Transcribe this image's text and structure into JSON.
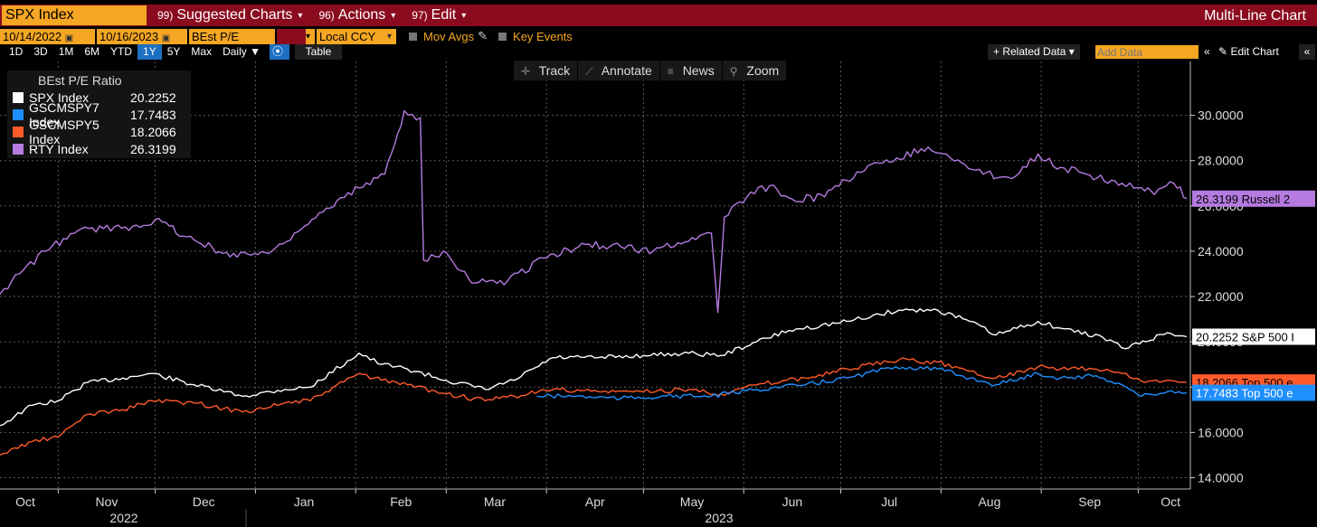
{
  "toolbar": {
    "ticker": "SPX Index",
    "menu": [
      {
        "num": "99)",
        "label": "Suggested Charts"
      },
      {
        "num": "96)",
        "label": "Actions"
      },
      {
        "num": "97)",
        "label": "Edit"
      }
    ],
    "chart_kind": "Multi-Line Chart"
  },
  "settings": {
    "start_date": "10/14/2022",
    "end_date": "10/16/2023",
    "field": "BEst P/E",
    "currency": "Local CCY",
    "mov_avgs": "Mov Avgs",
    "key_events": "Key Events"
  },
  "ranges": {
    "items": [
      "1D",
      "3D",
      "1M",
      "6M",
      "YTD",
      "1Y",
      "5Y",
      "Max"
    ],
    "active": "1Y",
    "frequency": "Daily",
    "table_label": "Table",
    "related_data": "+ Related Data",
    "add_data_placeholder": "Add Data",
    "edit_chart": "Edit Chart"
  },
  "tools": [
    {
      "icon": "crosshair-icon",
      "glyph": "✛",
      "label": "Track"
    },
    {
      "icon": "pen-icon",
      "glyph": "⟋",
      "label": "Annotate"
    },
    {
      "icon": "news-icon",
      "glyph": "≡",
      "label": "News"
    },
    {
      "icon": "zoom-icon",
      "glyph": "⚲",
      "label": "Zoom"
    }
  ],
  "colors": {
    "spx": "#ffffff",
    "gscmspy7": "#1f8fff",
    "gscmspy5": "#ff5a2a",
    "rty": "#b57be0",
    "orange": "#f5a623",
    "red": "#8a0b1e"
  },
  "chart_data": {
    "type": "line",
    "title": "BEst P/E Ratio",
    "x_months": [
      "Oct",
      "Nov",
      "Dec",
      "Jan",
      "Feb",
      "Mar",
      "Apr",
      "May",
      "Jun",
      "Jul",
      "Aug",
      "Sep",
      "Oct"
    ],
    "years": [
      "2022",
      "2023"
    ],
    "xrange": [
      "2022-10-14",
      "2023-10-16"
    ],
    "ylim": [
      13.5,
      31.5
    ],
    "yticks": [
      "14.0000",
      "16.0000",
      "18.0000",
      "20.0000",
      "22.0000",
      "24.0000",
      "26.0000",
      "28.0000",
      "30.0000"
    ],
    "grid": true,
    "legend_position": "top-left",
    "series": [
      {
        "key": "spx",
        "name": "SPX Index",
        "last": "20.2252",
        "tag": "20.2252 S&P 500 I",
        "points": [
          [
            "2022-10-14",
            16.3
          ],
          [
            "2022-10-24",
            17.2
          ],
          [
            "2022-11-01",
            17.4
          ],
          [
            "2022-11-10",
            18.2
          ],
          [
            "2022-11-21",
            18.4
          ],
          [
            "2022-11-30",
            18.6
          ],
          [
            "2022-12-13",
            18.1
          ],
          [
            "2022-12-28",
            17.6
          ],
          [
            "2023-01-10",
            17.9
          ],
          [
            "2023-01-18",
            18.0
          ],
          [
            "2023-02-02",
            19.5
          ],
          [
            "2023-02-09",
            19.0
          ],
          [
            "2023-02-17",
            18.8
          ],
          [
            "2023-03-01",
            18.3
          ],
          [
            "2023-03-13",
            17.9
          ],
          [
            "2023-03-22",
            18.3
          ],
          [
            "2023-04-03",
            19.3
          ],
          [
            "2023-04-17",
            19.3
          ],
          [
            "2023-05-01",
            19.4
          ],
          [
            "2023-05-15",
            19.5
          ],
          [
            "2023-05-25",
            19.4
          ],
          [
            "2023-06-05",
            20.0
          ],
          [
            "2023-06-15",
            20.5
          ],
          [
            "2023-07-03",
            20.9
          ],
          [
            "2023-07-19",
            21.4
          ],
          [
            "2023-07-31",
            21.4
          ],
          [
            "2023-08-10",
            20.9
          ],
          [
            "2023-08-18",
            20.3
          ],
          [
            "2023-08-31",
            20.9
          ],
          [
            "2023-09-07",
            20.6
          ],
          [
            "2023-09-20",
            20.2
          ],
          [
            "2023-09-27",
            19.7
          ],
          [
            "2023-10-10",
            20.4
          ],
          [
            "2023-10-16",
            20.2252
          ]
        ]
      },
      {
        "key": "gscmspy7",
        "name": "GSCMSPY7 Index",
        "last": "17.7483",
        "tag": "17.7483 Top 500 e",
        "points": [
          [
            "2023-03-29",
            17.6
          ],
          [
            "2023-04-10",
            17.6
          ],
          [
            "2023-04-24",
            17.5
          ],
          [
            "2023-05-08",
            17.6
          ],
          [
            "2023-05-22",
            17.6
          ],
          [
            "2023-06-05",
            17.9
          ],
          [
            "2023-06-20",
            18.1
          ],
          [
            "2023-07-03",
            18.4
          ],
          [
            "2023-07-18",
            18.9
          ],
          [
            "2023-07-31",
            18.8
          ],
          [
            "2023-08-10",
            18.4
          ],
          [
            "2023-08-18",
            18.1
          ],
          [
            "2023-08-31",
            18.6
          ],
          [
            "2023-09-07",
            18.4
          ],
          [
            "2023-09-18",
            18.5
          ],
          [
            "2023-09-26",
            18.1
          ],
          [
            "2023-10-02",
            17.6
          ],
          [
            "2023-10-10",
            17.8
          ],
          [
            "2023-10-16",
            17.7483
          ]
        ]
      },
      {
        "key": "gscmspy5",
        "name": "GSCMSPY5 Index",
        "last": "18.2066",
        "tag": "18.2066 Top 500 e",
        "points": [
          [
            "2022-10-14",
            15.0
          ],
          [
            "2022-10-24",
            15.6
          ],
          [
            "2022-11-01",
            15.8
          ],
          [
            "2022-11-10",
            16.8
          ],
          [
            "2022-11-21",
            17.0
          ],
          [
            "2022-11-30",
            17.4
          ],
          [
            "2022-12-13",
            17.3
          ],
          [
            "2022-12-28",
            16.9
          ],
          [
            "2023-01-10",
            17.3
          ],
          [
            "2023-01-18",
            17.4
          ],
          [
            "2023-02-02",
            18.6
          ],
          [
            "2023-02-09",
            18.3
          ],
          [
            "2023-02-17",
            18.1
          ],
          [
            "2023-03-01",
            17.7
          ],
          [
            "2023-03-13",
            17.4
          ],
          [
            "2023-03-22",
            17.6
          ],
          [
            "2023-04-03",
            17.9
          ],
          [
            "2023-04-17",
            17.8
          ],
          [
            "2023-05-01",
            17.8
          ],
          [
            "2023-05-15",
            17.9
          ],
          [
            "2023-05-25",
            17.7
          ],
          [
            "2023-06-05",
            18.1
          ],
          [
            "2023-06-20",
            18.4
          ],
          [
            "2023-07-03",
            18.8
          ],
          [
            "2023-07-19",
            19.2
          ],
          [
            "2023-07-31",
            19.1
          ],
          [
            "2023-08-10",
            18.7
          ],
          [
            "2023-08-18",
            18.4
          ],
          [
            "2023-08-31",
            18.9
          ],
          [
            "2023-09-07",
            18.8
          ],
          [
            "2023-09-18",
            18.8
          ],
          [
            "2023-09-26",
            18.6
          ],
          [
            "2023-10-03",
            18.2
          ],
          [
            "2023-10-10",
            18.3
          ],
          [
            "2023-10-16",
            18.2066
          ]
        ]
      },
      {
        "key": "rty",
        "name": "RTY Index",
        "last": "26.3199",
        "tag": "26.3199 Russell 2",
        "points": [
          [
            "2022-10-14",
            22.1
          ],
          [
            "2022-10-20",
            23.0
          ],
          [
            "2022-10-28",
            24.0
          ],
          [
            "2022-11-07",
            24.9
          ],
          [
            "2022-11-15",
            25.0
          ],
          [
            "2022-11-24",
            25.1
          ],
          [
            "2022-12-01",
            25.4
          ],
          [
            "2022-12-13",
            24.5
          ],
          [
            "2022-12-22",
            23.9
          ],
          [
            "2023-01-05",
            23.9
          ],
          [
            "2023-01-13",
            24.8
          ],
          [
            "2023-01-24",
            25.9
          ],
          [
            "2023-02-02",
            26.8
          ],
          [
            "2023-02-10",
            27.4
          ],
          [
            "2023-02-14",
            29.2
          ],
          [
            "2023-02-16",
            30.2
          ],
          [
            "2023-02-21",
            29.9
          ],
          [
            "2023-02-22",
            23.6
          ],
          [
            "2023-02-28",
            24.0
          ],
          [
            "2023-03-10",
            22.6
          ],
          [
            "2023-03-20",
            22.7
          ],
          [
            "2023-03-31",
            23.7
          ],
          [
            "2023-04-13",
            24.3
          ],
          [
            "2023-04-24",
            24.2
          ],
          [
            "2023-05-04",
            24.0
          ],
          [
            "2023-05-16",
            24.6
          ],
          [
            "2023-05-22",
            24.8
          ],
          [
            "2023-05-24",
            21.3
          ],
          [
            "2023-05-26",
            25.5
          ],
          [
            "2023-06-02",
            26.4
          ],
          [
            "2023-06-09",
            26.9
          ],
          [
            "2023-06-16",
            26.3
          ],
          [
            "2023-06-26",
            26.4
          ],
          [
            "2023-07-06",
            27.5
          ],
          [
            "2023-07-14",
            27.9
          ],
          [
            "2023-07-28",
            28.6
          ],
          [
            "2023-08-04",
            28.1
          ],
          [
            "2023-08-14",
            27.4
          ],
          [
            "2023-08-24",
            27.3
          ],
          [
            "2023-08-31",
            28.3
          ],
          [
            "2023-09-07",
            27.7
          ],
          [
            "2023-09-15",
            27.4
          ],
          [
            "2023-09-26",
            27.0
          ],
          [
            "2023-10-02",
            26.8
          ],
          [
            "2023-10-06",
            26.5
          ],
          [
            "2023-10-12",
            27.0
          ],
          [
            "2023-10-16",
            26.3199
          ]
        ]
      }
    ]
  }
}
